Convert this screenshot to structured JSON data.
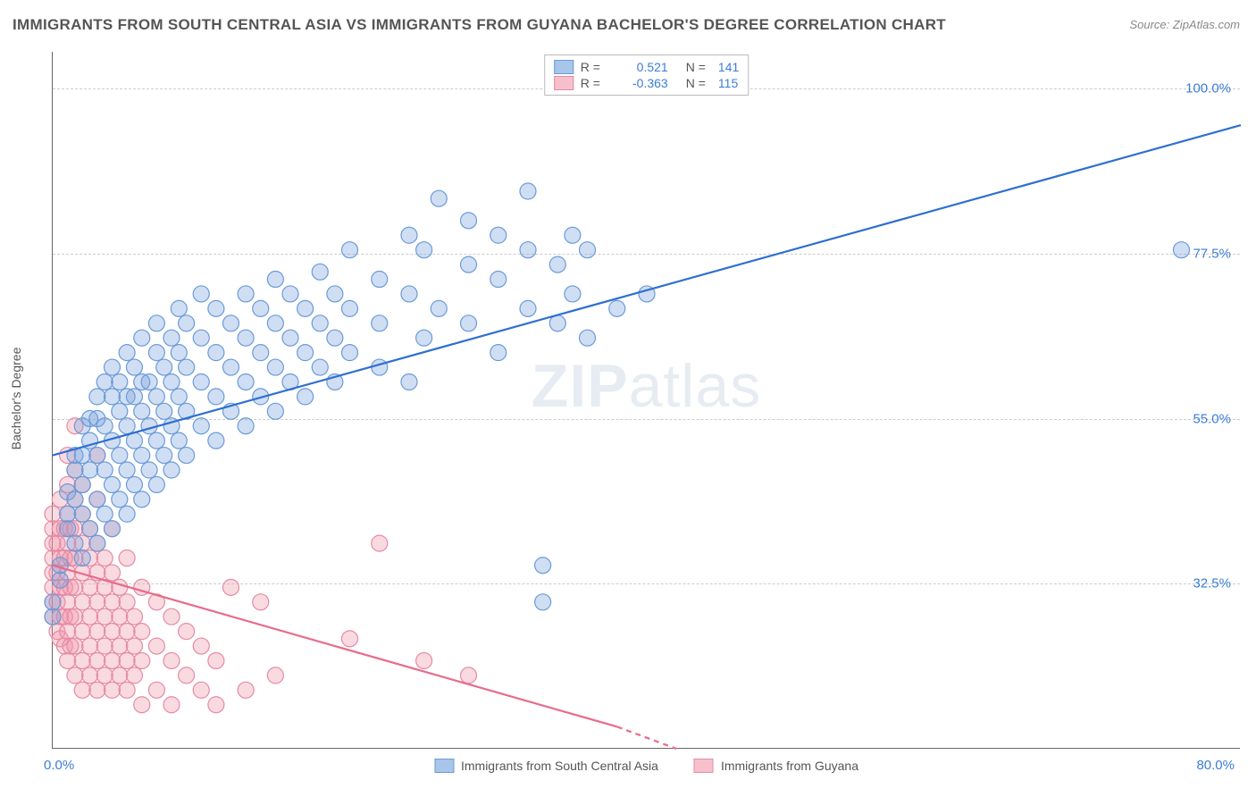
{
  "title": "IMMIGRANTS FROM SOUTH CENTRAL ASIA VS IMMIGRANTS FROM GUYANA BACHELOR'S DEGREE CORRELATION CHART",
  "source": "Source: ZipAtlas.com",
  "y_axis_label": "Bachelor's Degree",
  "watermark_bold": "ZIP",
  "watermark_rest": "atlas",
  "chart": {
    "type": "scatter",
    "xlim": [
      0,
      80
    ],
    "ylim": [
      10,
      105
    ],
    "x_ticks": [
      {
        "v": 0,
        "label": "0.0%"
      },
      {
        "v": 80,
        "label": "80.0%"
      }
    ],
    "y_ticks": [
      {
        "v": 32.5,
        "label": "32.5%"
      },
      {
        "v": 55.0,
        "label": "55.0%"
      },
      {
        "v": 77.5,
        "label": "77.5%"
      },
      {
        "v": 100.0,
        "label": "100.0%"
      }
    ],
    "grid_lines_y": [
      32.5,
      55.0,
      77.5,
      100.0
    ],
    "background_color": "#ffffff",
    "grid_color": "#cccccc",
    "axis_color": "#666666",
    "tick_label_color": "#3b7dd8",
    "marker_radius": 9,
    "marker_stroke_width": 1.2,
    "line_width": 2.2,
    "series": [
      {
        "name": "Immigrants from South Central Asia",
        "color_fill": "rgba(120,160,220,0.35)",
        "color_stroke": "#6a9bd8",
        "swatch_fill": "#a8c5ea",
        "swatch_border": "#6a9bd8",
        "line_color": "#2f6fd0",
        "r": "0.521",
        "n": "141",
        "regression": {
          "x1": 0,
          "y1": 50,
          "x2": 80,
          "y2": 95
        },
        "points": [
          [
            0,
            28
          ],
          [
            0,
            30
          ],
          [
            0.5,
            33
          ],
          [
            0.5,
            35
          ],
          [
            1,
            40
          ],
          [
            1,
            42
          ],
          [
            1,
            45
          ],
          [
            1.5,
            38
          ],
          [
            1.5,
            44
          ],
          [
            1.5,
            48
          ],
          [
            1.5,
            50
          ],
          [
            2,
            36
          ],
          [
            2,
            42
          ],
          [
            2,
            46
          ],
          [
            2,
            50
          ],
          [
            2,
            54
          ],
          [
            2.5,
            40
          ],
          [
            2.5,
            48
          ],
          [
            2.5,
            52
          ],
          [
            2.5,
            55
          ],
          [
            3,
            38
          ],
          [
            3,
            44
          ],
          [
            3,
            50
          ],
          [
            3,
            55
          ],
          [
            3,
            58
          ],
          [
            3.5,
            42
          ],
          [
            3.5,
            48
          ],
          [
            3.5,
            54
          ],
          [
            3.5,
            60
          ],
          [
            4,
            40
          ],
          [
            4,
            46
          ],
          [
            4,
            52
          ],
          [
            4,
            58
          ],
          [
            4,
            62
          ],
          [
            4.5,
            44
          ],
          [
            4.5,
            50
          ],
          [
            4.5,
            56
          ],
          [
            4.5,
            60
          ],
          [
            5,
            42
          ],
          [
            5,
            48
          ],
          [
            5,
            54
          ],
          [
            5,
            58
          ],
          [
            5,
            64
          ],
          [
            5.5,
            46
          ],
          [
            5.5,
            52
          ],
          [
            5.5,
            58
          ],
          [
            5.5,
            62
          ],
          [
            6,
            44
          ],
          [
            6,
            50
          ],
          [
            6,
            56
          ],
          [
            6,
            60
          ],
          [
            6,
            66
          ],
          [
            6.5,
            48
          ],
          [
            6.5,
            54
          ],
          [
            6.5,
            60
          ],
          [
            7,
            46
          ],
          [
            7,
            52
          ],
          [
            7,
            58
          ],
          [
            7,
            64
          ],
          [
            7,
            68
          ],
          [
            7.5,
            50
          ],
          [
            7.5,
            56
          ],
          [
            7.5,
            62
          ],
          [
            8,
            48
          ],
          [
            8,
            54
          ],
          [
            8,
            60
          ],
          [
            8,
            66
          ],
          [
            8.5,
            52
          ],
          [
            8.5,
            58
          ],
          [
            8.5,
            64
          ],
          [
            8.5,
            70
          ],
          [
            9,
            50
          ],
          [
            9,
            56
          ],
          [
            9,
            62
          ],
          [
            9,
            68
          ],
          [
            10,
            54
          ],
          [
            10,
            60
          ],
          [
            10,
            66
          ],
          [
            10,
            72
          ],
          [
            11,
            52
          ],
          [
            11,
            58
          ],
          [
            11,
            64
          ],
          [
            11,
            70
          ],
          [
            12,
            56
          ],
          [
            12,
            62
          ],
          [
            12,
            68
          ],
          [
            13,
            54
          ],
          [
            13,
            60
          ],
          [
            13,
            66
          ],
          [
            13,
            72
          ],
          [
            14,
            58
          ],
          [
            14,
            64
          ],
          [
            14,
            70
          ],
          [
            15,
            56
          ],
          [
            15,
            62
          ],
          [
            15,
            68
          ],
          [
            15,
            74
          ],
          [
            16,
            60
          ],
          [
            16,
            66
          ],
          [
            16,
            72
          ],
          [
            17,
            58
          ],
          [
            17,
            64
          ],
          [
            17,
            70
          ],
          [
            18,
            62
          ],
          [
            18,
            68
          ],
          [
            18,
            75
          ],
          [
            19,
            60
          ],
          [
            19,
            66
          ],
          [
            19,
            72
          ],
          [
            20,
            64
          ],
          [
            20,
            70
          ],
          [
            20,
            78
          ],
          [
            22,
            62
          ],
          [
            22,
            68
          ],
          [
            22,
            74
          ],
          [
            24,
            60
          ],
          [
            24,
            72
          ],
          [
            24,
            80
          ],
          [
            25,
            66
          ],
          [
            25,
            78
          ],
          [
            26,
            70
          ],
          [
            26,
            85
          ],
          [
            28,
            68
          ],
          [
            28,
            76
          ],
          [
            28,
            82
          ],
          [
            30,
            64
          ],
          [
            30,
            74
          ],
          [
            30,
            80
          ],
          [
            32,
            70
          ],
          [
            32,
            78
          ],
          [
            32,
            86
          ],
          [
            33,
            30
          ],
          [
            33,
            35
          ],
          [
            34,
            68
          ],
          [
            34,
            76
          ],
          [
            35,
            72
          ],
          [
            35,
            80
          ],
          [
            36,
            66
          ],
          [
            36,
            78
          ],
          [
            38,
            70
          ],
          [
            40,
            72
          ],
          [
            76,
            78
          ]
        ]
      },
      {
        "name": "Immigrants from Guyana",
        "color_fill": "rgba(240,150,170,0.35)",
        "color_stroke": "#e58ba3",
        "swatch_fill": "#f5c0cc",
        "swatch_border": "#e58ba3",
        "line_color": "#e86b8a",
        "r": "-0.363",
        "n": "115",
        "regression": {
          "x1": 0,
          "y1": 35,
          "x2": 38,
          "y2": 13
        },
        "regression_dash": {
          "x1": 38,
          "y1": 13,
          "x2": 42,
          "y2": 10
        },
        "points": [
          [
            0,
            28
          ],
          [
            0,
            30
          ],
          [
            0,
            32
          ],
          [
            0,
            34
          ],
          [
            0,
            36
          ],
          [
            0,
            38
          ],
          [
            0,
            40
          ],
          [
            0,
            42
          ],
          [
            0.3,
            26
          ],
          [
            0.3,
            30
          ],
          [
            0.3,
            34
          ],
          [
            0.3,
            38
          ],
          [
            0.5,
            25
          ],
          [
            0.5,
            28
          ],
          [
            0.5,
            32
          ],
          [
            0.5,
            36
          ],
          [
            0.5,
            40
          ],
          [
            0.5,
            44
          ],
          [
            0.8,
            24
          ],
          [
            0.8,
            28
          ],
          [
            0.8,
            32
          ],
          [
            0.8,
            36
          ],
          [
            0.8,
            40
          ],
          [
            1,
            22
          ],
          [
            1,
            26
          ],
          [
            1,
            30
          ],
          [
            1,
            34
          ],
          [
            1,
            38
          ],
          [
            1,
            42
          ],
          [
            1,
            46
          ],
          [
            1,
            50
          ],
          [
            1.2,
            24
          ],
          [
            1.2,
            28
          ],
          [
            1.2,
            32
          ],
          [
            1.2,
            36
          ],
          [
            1.2,
            40
          ],
          [
            1.5,
            20
          ],
          [
            1.5,
            24
          ],
          [
            1.5,
            28
          ],
          [
            1.5,
            32
          ],
          [
            1.5,
            36
          ],
          [
            1.5,
            40
          ],
          [
            1.5,
            44
          ],
          [
            1.5,
            48
          ],
          [
            1.5,
            54
          ],
          [
            2,
            18
          ],
          [
            2,
            22
          ],
          [
            2,
            26
          ],
          [
            2,
            30
          ],
          [
            2,
            34
          ],
          [
            2,
            38
          ],
          [
            2,
            42
          ],
          [
            2,
            46
          ],
          [
            2.5,
            20
          ],
          [
            2.5,
            24
          ],
          [
            2.5,
            28
          ],
          [
            2.5,
            32
          ],
          [
            2.5,
            36
          ],
          [
            2.5,
            40
          ],
          [
            3,
            18
          ],
          [
            3,
            22
          ],
          [
            3,
            26
          ],
          [
            3,
            30
          ],
          [
            3,
            34
          ],
          [
            3,
            38
          ],
          [
            3,
            44
          ],
          [
            3,
            50
          ],
          [
            3.5,
            20
          ],
          [
            3.5,
            24
          ],
          [
            3.5,
            28
          ],
          [
            3.5,
            32
          ],
          [
            3.5,
            36
          ],
          [
            4,
            18
          ],
          [
            4,
            22
          ],
          [
            4,
            26
          ],
          [
            4,
            30
          ],
          [
            4,
            34
          ],
          [
            4,
            40
          ],
          [
            4.5,
            20
          ],
          [
            4.5,
            24
          ],
          [
            4.5,
            28
          ],
          [
            4.5,
            32
          ],
          [
            5,
            18
          ],
          [
            5,
            22
          ],
          [
            5,
            26
          ],
          [
            5,
            30
          ],
          [
            5,
            36
          ],
          [
            5.5,
            20
          ],
          [
            5.5,
            24
          ],
          [
            5.5,
            28
          ],
          [
            6,
            16
          ],
          [
            6,
            22
          ],
          [
            6,
            26
          ],
          [
            6,
            32
          ],
          [
            7,
            18
          ],
          [
            7,
            24
          ],
          [
            7,
            30
          ],
          [
            8,
            16
          ],
          [
            8,
            22
          ],
          [
            8,
            28
          ],
          [
            9,
            20
          ],
          [
            9,
            26
          ],
          [
            10,
            18
          ],
          [
            10,
            24
          ],
          [
            11,
            16
          ],
          [
            11,
            22
          ],
          [
            12,
            32
          ],
          [
            13,
            18
          ],
          [
            14,
            30
          ],
          [
            15,
            20
          ],
          [
            20,
            25
          ],
          [
            22,
            38
          ],
          [
            25,
            22
          ],
          [
            28,
            20
          ]
        ]
      }
    ]
  }
}
